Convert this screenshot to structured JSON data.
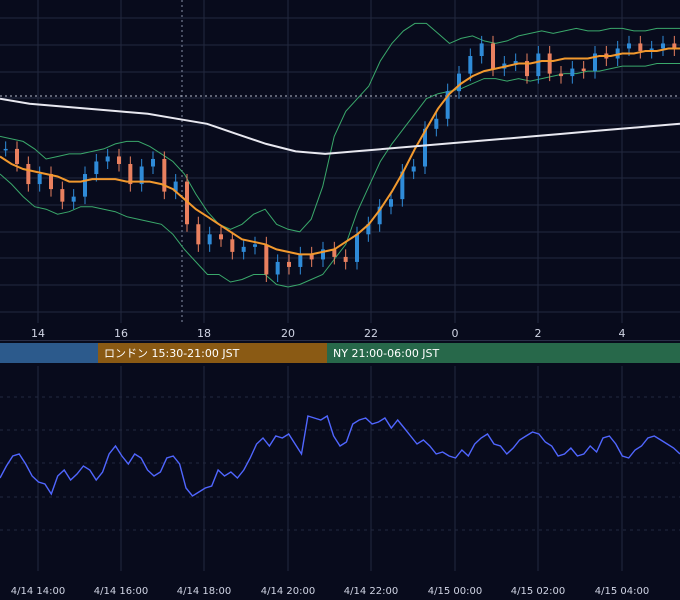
{
  "colors": {
    "background": "#080b1c",
    "grid": "#22283f",
    "candle_up": "#2f8bd8",
    "candle_down": "#e9805f",
    "bollinger": "#3aa86b",
    "ma_short": "#f2992e",
    "ma_long": "#e8e8f0",
    "oscillator": "#5066ff",
    "axis_text": "#d0d4e4",
    "session_tokyo": "#2c5a8c",
    "session_london": "#8a5a14",
    "session_ny": "#27684a"
  },
  "main_axis": {
    "ticks": [
      "14",
      "16",
      "18",
      "20",
      "22",
      "0",
      "2",
      "4"
    ]
  },
  "sessions": {
    "tokyo_label": "",
    "london_label": "ロンドン 15:30-21:00 JST",
    "ny_label": "NY 21:00-06:00 JST"
  },
  "oscillator_axis": {
    "ticks": [
      "4/14 14:00",
      "4/14 16:00",
      "4/14 18:00",
      "4/14 20:00",
      "4/14 22:00",
      "4/15 00:00",
      "4/15 02:00",
      "4/15 04:00"
    ]
  },
  "chart_data": [
    {
      "type": "candlestick",
      "title": "",
      "x_ticks": [
        "14",
        "16",
        "18",
        "20",
        "22",
        "0",
        "2",
        "4"
      ],
      "grid": true,
      "y_values_note_free": true,
      "series": [
        {
          "indicator": "close",
          "values": [
            0.5,
            0.44,
            0.36,
            0.4,
            0.34,
            0.29,
            0.31,
            0.4,
            0.45,
            0.47,
            0.44,
            0.36,
            0.43,
            0.46,
            0.33,
            0.37,
            0.2,
            0.12,
            0.16,
            0.14,
            0.09,
            0.11,
            0.12,
            0.0,
            0.05,
            0.03,
            0.08,
            0.06,
            0.1,
            0.07,
            0.05,
            0.16,
            0.2,
            0.27,
            0.3,
            0.41,
            0.43,
            0.58,
            0.62,
            0.73,
            0.8,
            0.87,
            0.92,
            0.82,
            0.84,
            0.85,
            0.79,
            0.88,
            0.8,
            0.79,
            0.82,
            0.81,
            0.88,
            0.86,
            0.9,
            0.92,
            0.89,
            0.9,
            0.92,
            0.9
          ]
        },
        {
          "indicator": "bollinger_upper",
          "values": [
            0.55,
            0.54,
            0.53,
            0.5,
            0.46,
            0.47,
            0.48,
            0.48,
            0.49,
            0.5,
            0.52,
            0.53,
            0.53,
            0.51,
            0.48,
            0.45,
            0.4,
            0.32,
            0.25,
            0.2,
            0.18,
            0.2,
            0.24,
            0.26,
            0.2,
            0.18,
            0.17,
            0.22,
            0.35,
            0.55,
            0.65,
            0.7,
            0.75,
            0.85,
            0.92,
            0.97,
            1.0,
            1.0,
            0.96,
            0.92,
            0.94,
            0.95,
            0.93,
            0.92,
            0.93,
            0.95,
            0.96,
            0.97,
            0.96,
            0.97,
            0.98,
            0.97,
            0.97,
            0.98,
            0.98,
            0.97,
            0.97,
            0.98,
            0.98,
            0.98
          ]
        },
        {
          "indicator": "bollinger_lower",
          "values": [
            0.4,
            0.36,
            0.31,
            0.27,
            0.26,
            0.24,
            0.25,
            0.27,
            0.27,
            0.26,
            0.25,
            0.23,
            0.22,
            0.21,
            0.2,
            0.16,
            0.1,
            0.05,
            0.0,
            0.0,
            -0.03,
            -0.02,
            0.0,
            0.0,
            -0.04,
            -0.05,
            -0.04,
            -0.02,
            0.0,
            0.06,
            0.12,
            0.25,
            0.35,
            0.45,
            0.52,
            0.58,
            0.64,
            0.7,
            0.72,
            0.73,
            0.74,
            0.76,
            0.78,
            0.78,
            0.77,
            0.78,
            0.77,
            0.78,
            0.79,
            0.8,
            0.8,
            0.81,
            0.81,
            0.82,
            0.83,
            0.83,
            0.83,
            0.84,
            0.84,
            0.84
          ]
        },
        {
          "indicator": "ma_short",
          "values": [
            0.47,
            0.44,
            0.42,
            0.41,
            0.4,
            0.39,
            0.37,
            0.37,
            0.38,
            0.38,
            0.38,
            0.37,
            0.37,
            0.37,
            0.36,
            0.34,
            0.3,
            0.26,
            0.23,
            0.2,
            0.17,
            0.14,
            0.13,
            0.12,
            0.1,
            0.09,
            0.08,
            0.08,
            0.09,
            0.1,
            0.13,
            0.16,
            0.2,
            0.26,
            0.33,
            0.41,
            0.5,
            0.58,
            0.66,
            0.72,
            0.76,
            0.79,
            0.81,
            0.82,
            0.83,
            0.84,
            0.84,
            0.85,
            0.85,
            0.86,
            0.86,
            0.86,
            0.87,
            0.87,
            0.88,
            0.88,
            0.89,
            0.89,
            0.9,
            0.9
          ]
        },
        {
          "indicator": "ma_long",
          "values": [
            0.7,
            0.68,
            0.67,
            0.66,
            0.65,
            0.64,
            0.62,
            0.6,
            0.56,
            0.52,
            0.49,
            0.48,
            0.49,
            0.5,
            0.51,
            0.52,
            0.53,
            0.54,
            0.55,
            0.56,
            0.57,
            0.58,
            0.59,
            0.6
          ]
        }
      ]
    },
    {
      "type": "line",
      "title": "",
      "x_ticks": [
        "4/14 14:00",
        "4/14 16:00",
        "4/14 18:00",
        "4/14 20:00",
        "4/14 22:00",
        "4/15 00:00",
        "4/15 02:00",
        "4/15 04:00"
      ],
      "grid": true,
      "series": [
        {
          "values": [
            0.38,
            0.5,
            0.6,
            0.62,
            0.52,
            0.4,
            0.34,
            0.32,
            0.22,
            0.4,
            0.46,
            0.36,
            0.42,
            0.5,
            0.46,
            0.36,
            0.44,
            0.62,
            0.7,
            0.6,
            0.52,
            0.62,
            0.58,
            0.46,
            0.4,
            0.44,
            0.58,
            0.6,
            0.52,
            0.28,
            0.2,
            0.24,
            0.28,
            0.3,
            0.46,
            0.4,
            0.44,
            0.38,
            0.46,
            0.58,
            0.72,
            0.78,
            0.7,
            0.8,
            0.78,
            0.82,
            0.72,
            0.62,
            1.0,
            0.98,
            0.96,
            1.0,
            0.8,
            0.7,
            0.74,
            0.92,
            0.96,
            0.98,
            0.92,
            0.94,
            0.98,
            0.88,
            0.96,
            0.88,
            0.8,
            0.72,
            0.76,
            0.7,
            0.62,
            0.64,
            0.6,
            0.58,
            0.66,
            0.6,
            0.72,
            0.78,
            0.82,
            0.72,
            0.7,
            0.62,
            0.68,
            0.76,
            0.8,
            0.84,
            0.82,
            0.74,
            0.7,
            0.6,
            0.62,
            0.68,
            0.6,
            0.62,
            0.7,
            0.64,
            0.78,
            0.8,
            0.72,
            0.6,
            0.58,
            0.66,
            0.7,
            0.78,
            0.8,
            0.76,
            0.72,
            0.68,
            0.62
          ]
        }
      ]
    }
  ]
}
